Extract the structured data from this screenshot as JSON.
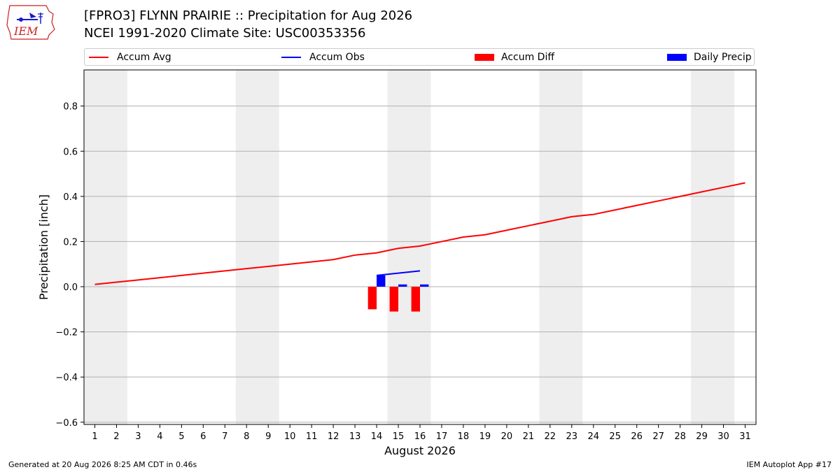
{
  "header": {
    "title_line1": "[FPRO3] FLYNN PRAIRIE :: Precipitation for Aug 2026",
    "title_line2": "NCEI 1991-2020 Climate Site: USC00353356",
    "logo_text": "IEM"
  },
  "legend": {
    "items": [
      {
        "label": "Accum Avg",
        "kind": "line",
        "color": "#ff0000"
      },
      {
        "label": "Accum Obs",
        "kind": "line",
        "color": "#0000ff"
      },
      {
        "label": "Accum Diff",
        "kind": "patch",
        "color": "#ff0000"
      },
      {
        "label": "Daily Precip",
        "kind": "patch",
        "color": "#0000ff"
      }
    ],
    "placement": "top"
  },
  "footer": {
    "left": "Generated at 20 Aug 2026 8:25 AM CDT in 0.46s",
    "right": "IEM Autoplot App #17"
  },
  "chart_data": {
    "type": "line",
    "title": "[FPRO3] FLYNN PRAIRIE :: Precipitation for Aug 2026",
    "xlabel": "August 2026",
    "ylabel": "Precipitation [inch]",
    "xlim": [
      0.5,
      31.5
    ],
    "ylim": [
      -0.61,
      0.96
    ],
    "x_ticks": [
      1,
      2,
      3,
      4,
      5,
      6,
      7,
      8,
      9,
      10,
      11,
      12,
      13,
      14,
      15,
      16,
      17,
      18,
      19,
      20,
      21,
      22,
      23,
      24,
      25,
      26,
      27,
      28,
      29,
      30,
      31
    ],
    "y_ticks": [
      -0.6,
      -0.4,
      -0.2,
      0.0,
      0.2,
      0.4,
      0.6,
      0.8
    ],
    "y_tick_labels": [
      "−0.6",
      "−0.4",
      "−0.2",
      "0.0",
      "0.2",
      "0.4",
      "0.6",
      "0.8"
    ],
    "grid": true,
    "weekend_shading": [
      [
        0.5,
        2.5
      ],
      [
        7.5,
        9.5
      ],
      [
        14.5,
        16.5
      ],
      [
        21.5,
        23.5
      ],
      [
        28.5,
        30.5
      ]
    ],
    "series": [
      {
        "name": "Accum Avg",
        "type": "line",
        "color": "#ff0000",
        "x": [
          1,
          2,
          3,
          4,
          5,
          6,
          7,
          8,
          9,
          10,
          11,
          12,
          13,
          14,
          15,
          16,
          17,
          18,
          19,
          20,
          21,
          22,
          23,
          24,
          25,
          26,
          27,
          28,
          29,
          30,
          31
        ],
        "values": [
          0.01,
          0.02,
          0.03,
          0.04,
          0.05,
          0.06,
          0.07,
          0.08,
          0.09,
          0.1,
          0.11,
          0.12,
          0.14,
          0.15,
          0.17,
          0.18,
          0.2,
          0.22,
          0.23,
          0.25,
          0.27,
          0.29,
          0.31,
          0.32,
          0.34,
          0.36,
          0.38,
          0.4,
          0.42,
          0.44,
          0.46
        ]
      },
      {
        "name": "Accum Obs",
        "type": "line",
        "color": "#0000ff",
        "x": [
          14,
          15,
          16
        ],
        "values": [
          0.05,
          0.06,
          0.07
        ]
      },
      {
        "name": "Accum Diff",
        "type": "bar",
        "color": "#ff0000",
        "x": [
          14,
          15,
          16
        ],
        "values": [
          -0.1,
          -0.11,
          -0.11
        ]
      },
      {
        "name": "Daily Precip",
        "type": "bar",
        "color": "#0000ff",
        "x": [
          14,
          15,
          16
        ],
        "values": [
          0.05,
          0.01,
          0.01
        ]
      }
    ]
  }
}
